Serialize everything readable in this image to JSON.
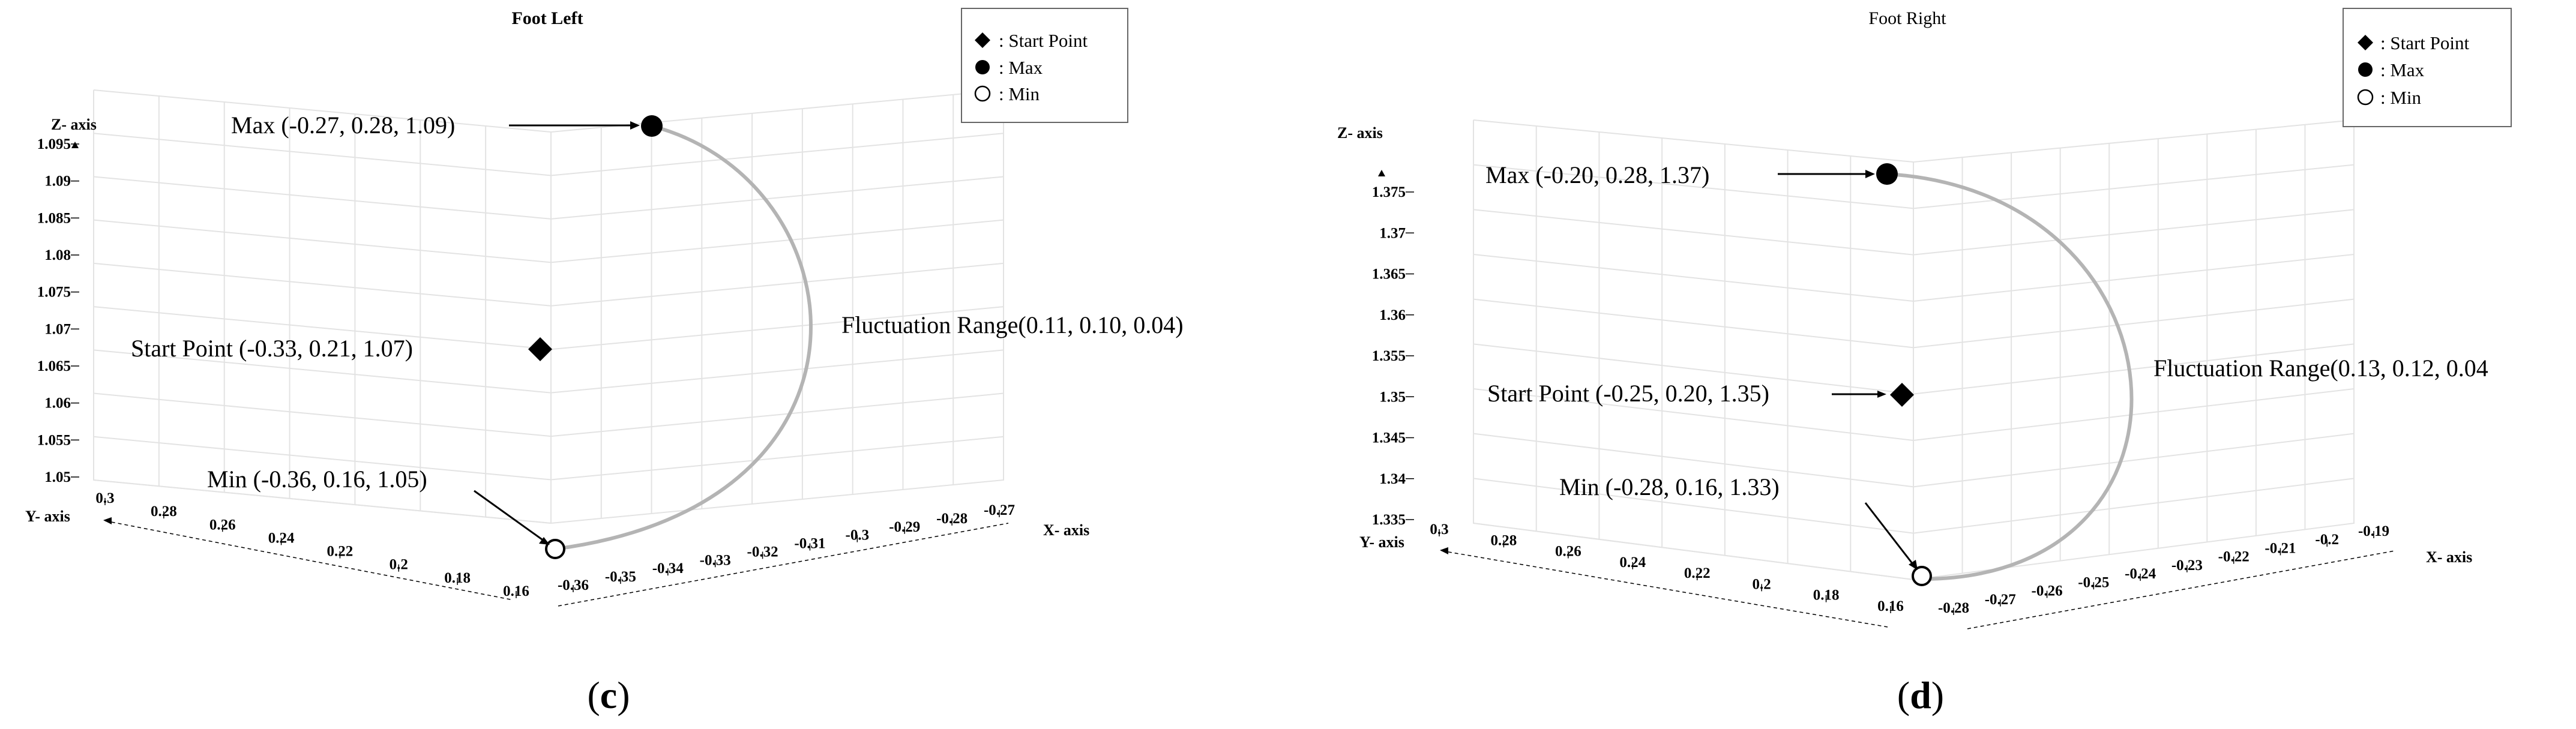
{
  "chart_data": [
    {
      "type": "scatter3d",
      "panel": "(c)",
      "title": "Foot Left",
      "xlabel": "X- axis",
      "ylabel": "Y- axis",
      "zlabel": "Z- axis",
      "xticks": [
        "-0.36",
        "-0.35",
        "-0.34",
        "-0.33",
        "-0.32",
        "-0.31",
        "-0.3",
        "-0.29",
        "-0.28",
        "-0.27"
      ],
      "yticks": [
        "0.3",
        "0.28",
        "0.26",
        "0.24",
        "0.22",
        "0.2",
        "0.18",
        "0.16"
      ],
      "zticks": [
        "1.05",
        "1.055",
        "1.06",
        "1.065",
        "1.07",
        "1.075",
        "1.08",
        "1.085",
        "1.09",
        "1.095"
      ],
      "xlim": [
        -0.36,
        -0.27
      ],
      "ylim": [
        0.16,
        0.3
      ],
      "zlim": [
        1.05,
        1.095
      ],
      "points": {
        "start": {
          "x": -0.33,
          "y": 0.21,
          "z": 1.07,
          "label": "Start Point (-0.33, 0.21, 1.07)"
        },
        "max": {
          "x": -0.27,
          "y": 0.28,
          "z": 1.09,
          "label": "Max (-0.27, 0.28, 1.09)"
        },
        "min": {
          "x": -0.36,
          "y": 0.16,
          "z": 1.05,
          "label": "Min (-0.36, 0.16, 1.05)"
        }
      },
      "fluctuation_label": "Fluctuation Range(0.11, 0.10, 0.04)",
      "legend": {
        "placement": "top-right",
        "entries": [
          ": Start Point",
          ": Max",
          ": Min"
        ]
      },
      "grid": true
    },
    {
      "type": "scatter3d",
      "panel": "(d)",
      "title": "Foot Right",
      "xlabel": "X- axis",
      "ylabel": "Y- axis",
      "zlabel": "Z- axis",
      "xticks": [
        "-0.28",
        "-0.27",
        "-0.26",
        "-0.25",
        "-0.24",
        "-0.23",
        "-0.22",
        "-0.21",
        "-0.2",
        "-0.19"
      ],
      "yticks": [
        "0.3",
        "0.28",
        "0.26",
        "0.24",
        "0.22",
        "0.2",
        "0.18",
        "0.16"
      ],
      "zticks": [
        "1.335",
        "1.34",
        "1.345",
        "1.35",
        "1.355",
        "1.36",
        "1.365",
        "1.37",
        "1.375"
      ],
      "xlim": [
        -0.28,
        -0.19
      ],
      "ylim": [
        0.16,
        0.3
      ],
      "zlim": [
        1.33,
        1.38
      ],
      "points": {
        "start": {
          "x": -0.25,
          "y": 0.2,
          "z": 1.35,
          "label": "Start Point (-0.25, 0.20, 1.35)"
        },
        "max": {
          "x": -0.2,
          "y": 0.28,
          "z": 1.37,
          "label": "Max (-0.20, 0.28, 1.37)"
        },
        "min": {
          "x": -0.28,
          "y": 0.16,
          "z": 1.33,
          "label": "Min (-0.28, 0.16, 1.33)"
        }
      },
      "fluctuation_label": "Fluctuation Range(0.13, 0.12, 0.04",
      "legend": {
        "placement": "top-right",
        "entries": [
          ": Start Point",
          ": Max",
          ": Min"
        ]
      },
      "grid": true
    }
  ],
  "captions": {
    "left": {
      "open": "(",
      "letter": "c",
      "close": ")"
    },
    "right": {
      "open": "(",
      "letter": "d",
      "close": ")"
    }
  }
}
